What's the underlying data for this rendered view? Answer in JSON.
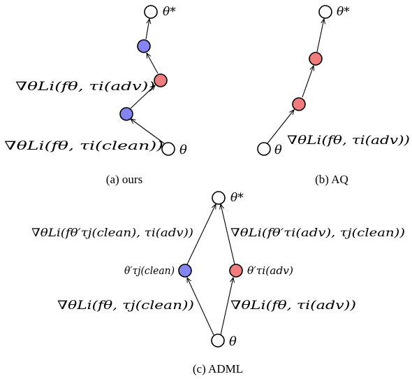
{
  "colors": {
    "empty": "#ffffff",
    "clean": "#8585f2",
    "adv": "#f07d7d"
  },
  "panel_a": {
    "caption": "(a) ours",
    "start_label": "θ",
    "end_label": "θ*",
    "step1_label": "∇θLi(fθ, τi(clean))",
    "step2_label": "∇θLi(fθ, τi(adv))"
  },
  "panel_b": {
    "caption": "(b) AQ",
    "start_label": "θ",
    "end_label": "θ*",
    "step_label": "∇θLi(fθ, τi(adv))"
  },
  "panel_c": {
    "caption": "(c) ADML",
    "start_label": "θ",
    "end_label": "θ*",
    "left_node_label": "θ′τj(clean)",
    "right_node_label": "θ′τi(adv)",
    "left_lower_label": "∇θLi(fθ, τj(clean))",
    "right_lower_label": "∇θLi(fθ, τi(adv))",
    "left_upper_label": "∇θLi(fθ′τj(clean), τi(adv))",
    "right_upper_label": "∇θLi(fθ′τi(adv), τj(clean))"
  }
}
